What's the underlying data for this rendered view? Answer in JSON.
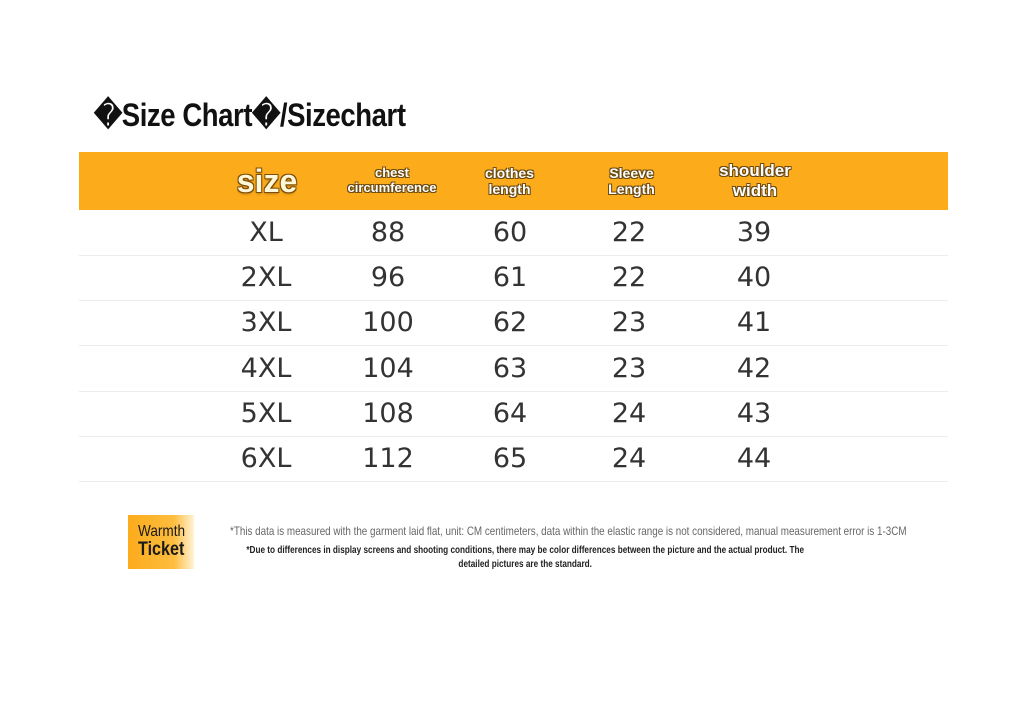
{
  "title": "�Size Chart�/Sizechart",
  "headers": {
    "size": "size",
    "chest": "chest circumference",
    "length": "clothes length",
    "sleeve": "Sleeve Length",
    "shoulder": "shoulder width"
  },
  "rows": [
    {
      "size": "XL",
      "chest": "88",
      "length": "60",
      "sleeve": "22",
      "shoulder": "39"
    },
    {
      "size": "2XL",
      "chest": "96",
      "length": "61",
      "sleeve": "22",
      "shoulder": "40"
    },
    {
      "size": "3XL",
      "chest": "100",
      "length": "62",
      "sleeve": "23",
      "shoulder": "41"
    },
    {
      "size": "4XL",
      "chest": "104",
      "length": "63",
      "sleeve": "23",
      "shoulder": "42"
    },
    {
      "size": "5XL",
      "chest": "108",
      "length": "64",
      "sleeve": "24",
      "shoulder": "43"
    },
    {
      "size": "6XL",
      "chest": "112",
      "length": "65",
      "sleeve": "24",
      "shoulder": "44"
    }
  ],
  "ticket": {
    "line1": "Warmth",
    "line2": "Ticket"
  },
  "notes": {
    "measurement": "*This data is measured with the garment laid flat, unit: CM centimeters, data within the elastic range is not considered, manual measurement error is 1-3CM",
    "color": "*Due to differences in display screens and shooting conditions, there may be color differences between the picture and the actual product. The detailed pictures are the standard."
  },
  "colors": {
    "header_bg": "#fcab1b",
    "row_divider": "#ececec"
  }
}
